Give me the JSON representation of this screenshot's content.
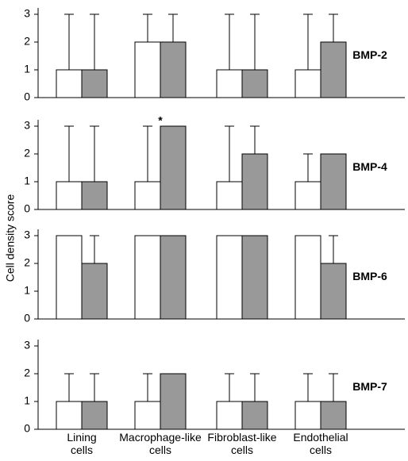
{
  "ylabel": "Cell density score",
  "categories": [
    "Lining cells",
    "Macrophage-like cells",
    "Fibroblast-like cells",
    "Endothelial cells"
  ],
  "chart_data": [
    {
      "type": "bar",
      "title": "BMP-2",
      "ylim": [
        0,
        3
      ],
      "yticks": [
        0,
        1,
        2,
        3
      ],
      "series": [
        {
          "color": "#ffffff",
          "values": [
            1,
            2,
            1,
            1
          ],
          "error_low": [
            0,
            1,
            0,
            1
          ],
          "error_high": [
            3,
            3,
            3,
            3
          ]
        },
        {
          "color": "#999999",
          "values": [
            1,
            2,
            1,
            2
          ],
          "error_low": [
            0,
            1,
            0,
            1
          ],
          "error_high": [
            3,
            3,
            3,
            3
          ]
        }
      ]
    },
    {
      "type": "bar",
      "title": "BMP-4",
      "ylim": [
        0,
        3
      ],
      "yticks": [
        0,
        1,
        2,
        3
      ],
      "annotation": "*",
      "series": [
        {
          "color": "#ffffff",
          "values": [
            1,
            1,
            1,
            1
          ],
          "error_low": [
            0,
            0,
            0,
            1
          ],
          "error_high": [
            3,
            3,
            3,
            2
          ]
        },
        {
          "color": "#999999",
          "values": [
            1,
            3,
            2,
            2
          ],
          "error_low": [
            0,
            2,
            1,
            1
          ],
          "error_high": [
            3,
            3,
            3,
            2
          ]
        }
      ]
    },
    {
      "type": "bar",
      "title": "BMP-6",
      "ylim": [
        0,
        3
      ],
      "yticks": [
        0,
        1,
        2,
        3
      ],
      "series": [
        {
          "color": "#ffffff",
          "values": [
            3,
            3,
            3,
            3
          ],
          "error_low": [
            2,
            2,
            2,
            2
          ],
          "error_high": [
            3,
            3,
            3,
            3
          ]
        },
        {
          "color": "#999999",
          "values": [
            2,
            3,
            3,
            2
          ],
          "error_low": [
            2,
            3,
            2,
            2
          ],
          "error_high": [
            3,
            3,
            3,
            3
          ]
        }
      ]
    },
    {
      "type": "bar",
      "title": "BMP-7",
      "ylim": [
        0,
        3
      ],
      "yticks": [
        0,
        1,
        2,
        3
      ],
      "series": [
        {
          "color": "#ffffff",
          "values": [
            1,
            1,
            1,
            1
          ],
          "error_low": [
            1,
            1,
            0,
            1
          ],
          "error_high": [
            2,
            2,
            2,
            2
          ]
        },
        {
          "color": "#999999",
          "values": [
            1,
            2,
            1,
            1
          ],
          "error_low": [
            0,
            1,
            0,
            1
          ],
          "error_high": [
            2,
            2,
            2,
            2
          ]
        }
      ]
    }
  ]
}
